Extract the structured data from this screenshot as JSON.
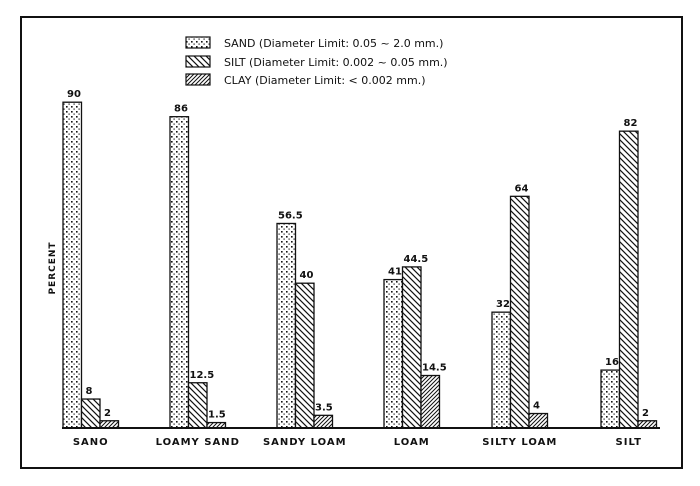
{
  "chart_data": {
    "type": "bar",
    "title": "",
    "xlabel": "",
    "ylabel": "PERCENT",
    "ylim": [
      0,
      100
    ],
    "grid": false,
    "legend_position": "top-center",
    "categories": [
      "SANO",
      "LOAMY SAND",
      "SANDY LOAM",
      "LOAM",
      "SILTY LOAM",
      "SILT"
    ],
    "series": [
      {
        "name": "SAND (Diameter Limit: 0.05 ~ 2.0 mm.)",
        "key": "sand",
        "pattern": "dots",
        "values": [
          90,
          86,
          56.5,
          41,
          32,
          16
        ],
        "labels": [
          "90",
          "86",
          "56.5",
          "41",
          "32",
          "16"
        ]
      },
      {
        "name": "SILT (Diameter Limit: 0.002 ~ 0.05 mm.)",
        "key": "silt",
        "pattern": "backslash-hatch",
        "values": [
          8,
          12.5,
          40,
          44.5,
          64,
          82
        ],
        "labels": [
          "8",
          "12.5",
          "40",
          "44.5",
          "64",
          "82"
        ]
      },
      {
        "name": "CLAY (Diameter Limit: < 0.002 mm.)",
        "key": "clay",
        "pattern": "slash-hatch",
        "values": [
          2,
          1.5,
          3.5,
          14.5,
          4,
          2
        ],
        "labels": [
          "2",
          "1.5",
          "3.5",
          "14.5",
          "4",
          "2"
        ]
      }
    ]
  },
  "legend": {
    "items": [
      {
        "label": "SAND (Diameter Limit: 0.05 ~ 2.0 mm.)"
      },
      {
        "label": "SILT (Diameter Limit: 0.002 ~ 0.05 mm.)"
      },
      {
        "label": "CLAY (Diameter Limit: < 0.002 mm.)"
      }
    ]
  },
  "axis": {
    "ylabel": "PERCENT"
  },
  "colors": {
    "ink": "#111111",
    "background": "#ffffff"
  }
}
